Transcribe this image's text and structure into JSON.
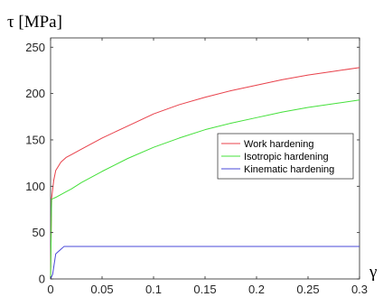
{
  "chart_data": {
    "type": "line",
    "ylabel": "τ [MPa]",
    "xlabel": "γ",
    "xlim": [
      0,
      0.3
    ],
    "ylim": [
      0,
      260
    ],
    "xticks": [
      0,
      0.05,
      0.1,
      0.15,
      0.2,
      0.25,
      0.3
    ],
    "xtick_labels": [
      "0",
      "0.05",
      "0.1",
      "0.15",
      "0.2",
      "0.25",
      "0.3"
    ],
    "yticks": [
      0,
      50,
      100,
      150,
      200,
      250
    ],
    "ytick_labels": [
      "0",
      "50",
      "100",
      "150",
      "200",
      "250"
    ],
    "grid": false,
    "legend_position": "right",
    "series": [
      {
        "name": "Work hardening",
        "color": "#e8404a",
        "x": [
          0,
          0.001,
          0.003,
          0.005,
          0.01,
          0.015,
          0.02,
          0.03,
          0.05,
          0.075,
          0.1,
          0.125,
          0.15,
          0.175,
          0.2,
          0.225,
          0.25,
          0.275,
          0.3
        ],
        "y": [
          0,
          87,
          106,
          117,
          126,
          131,
          134,
          140,
          152,
          165,
          178,
          188,
          196,
          203,
          209,
          215,
          220,
          224,
          228
        ]
      },
      {
        "name": "Isotropic hardening",
        "color": "#44e03a",
        "x": [
          0,
          0.001,
          0.003,
          0.005,
          0.01,
          0.015,
          0.02,
          0.03,
          0.05,
          0.075,
          0.1,
          0.125,
          0.15,
          0.175,
          0.2,
          0.225,
          0.25,
          0.275,
          0.3
        ],
        "y": [
          0,
          86,
          87,
          88,
          91,
          94,
          97,
          104,
          116,
          130,
          142,
          152,
          161,
          168,
          174,
          180,
          185,
          189,
          193
        ]
      },
      {
        "name": "Kinematic hardening",
        "color": "#4a4ad8",
        "x": [
          0,
          0.002,
          0.005,
          0.01,
          0.013,
          0.05,
          0.1,
          0.15,
          0.2,
          0.25,
          0.3
        ],
        "y": [
          0,
          5,
          27,
          32,
          35,
          35,
          35,
          35,
          35,
          35,
          35
        ]
      }
    ]
  }
}
